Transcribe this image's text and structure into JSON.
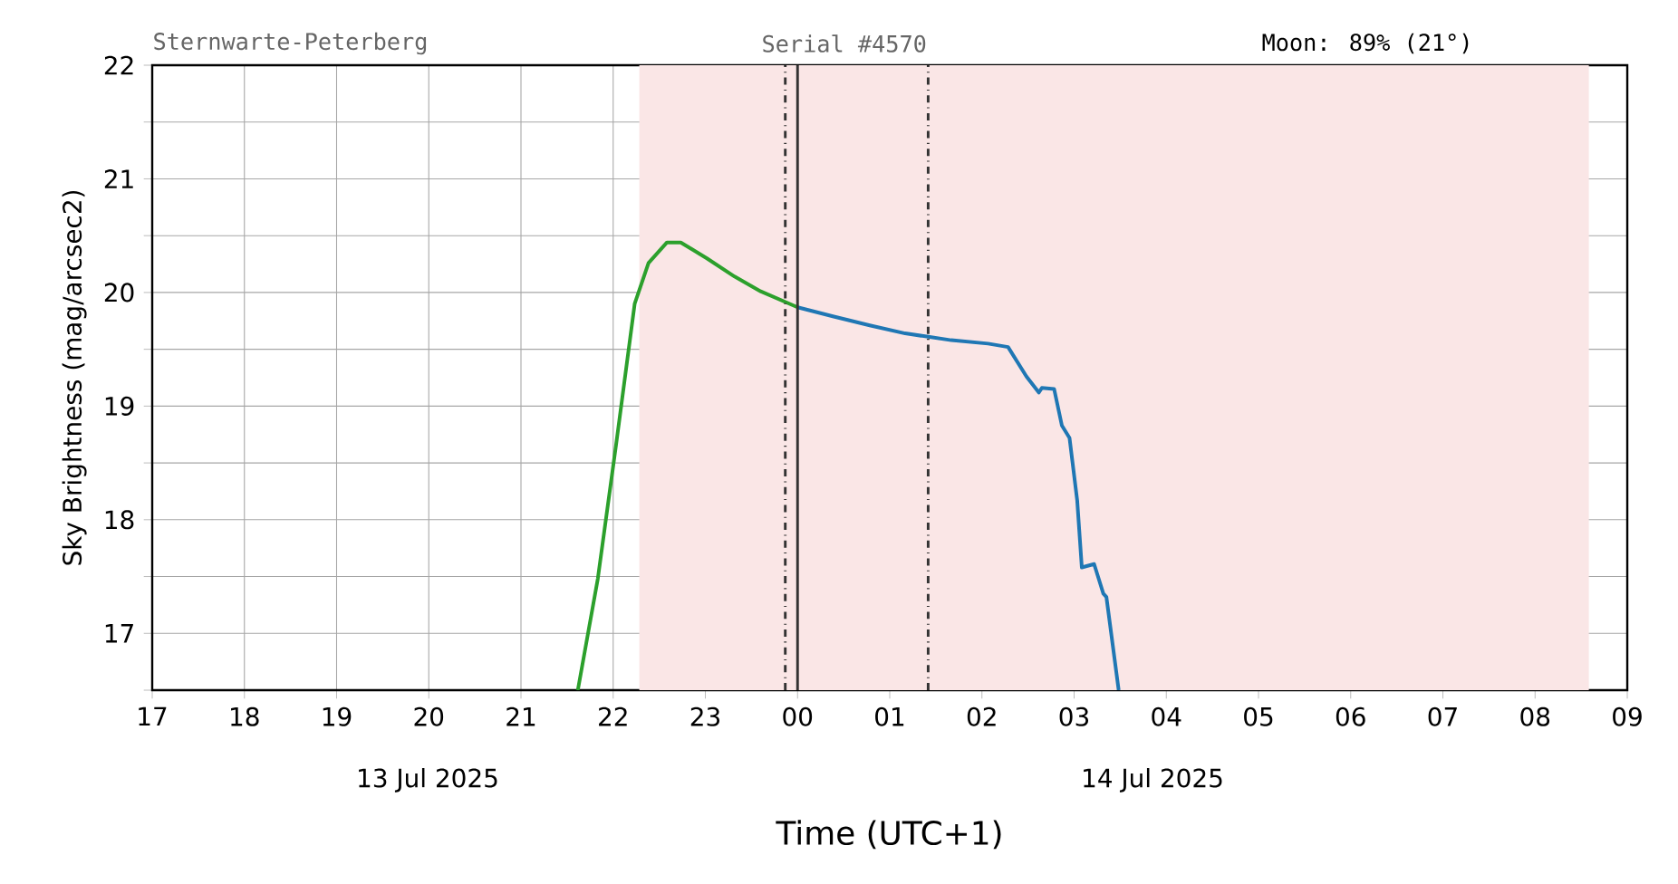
{
  "chart_data": {
    "type": "line",
    "xlabel": "Time (UTC+1)",
    "ylabel": "Sky Brightness (mag/arcsec2)",
    "annotations": [
      "Sternwarte-Peterberg",
      "Serial #4570",
      "Moon: 89% (21°)",
      "13 Jul 2025",
      "14 Jul 2025"
    ],
    "xlim": [
      "2025-07-13T17:00",
      "2025-07-14T09:00"
    ],
    "ylim": [
      16.5,
      22
    ],
    "xticks": [
      {
        "value": "2025-07-13T17:00",
        "label": "17"
      },
      {
        "value": "2025-07-13T18:00",
        "label": "18"
      },
      {
        "value": "2025-07-13T19:00",
        "label": "19"
      },
      {
        "value": "2025-07-13T20:00",
        "label": "20"
      },
      {
        "value": "2025-07-13T21:00",
        "label": "21"
      },
      {
        "value": "2025-07-13T22:00",
        "label": "22"
      },
      {
        "value": "2025-07-13T23:00",
        "label": "23"
      },
      {
        "value": "2025-07-14T00:00",
        "label": "00"
      },
      {
        "value": "2025-07-14T01:00",
        "label": "01"
      },
      {
        "value": "2025-07-14T02:00",
        "label": "02"
      },
      {
        "value": "2025-07-14T03:00",
        "label": "03"
      },
      {
        "value": "2025-07-14T04:00",
        "label": "04"
      },
      {
        "value": "2025-07-14T05:00",
        "label": "05"
      },
      {
        "value": "2025-07-14T06:00",
        "label": "06"
      },
      {
        "value": "2025-07-14T07:00",
        "label": "07"
      },
      {
        "value": "2025-07-14T08:00",
        "label": "08"
      },
      {
        "value": "2025-07-14T09:00",
        "label": "09"
      }
    ],
    "yticks": [
      {
        "value": 16.5,
        "label": null
      },
      17,
      {
        "value": 17.5,
        "label": null
      },
      18,
      {
        "value": 18.5,
        "label": null
      },
      19,
      {
        "value": 19.5,
        "label": null
      },
      20,
      {
        "value": 20.5,
        "label": null
      },
      21,
      {
        "value": 21.5,
        "label": null
      },
      22
    ],
    "grid": true,
    "marker": "none",
    "line_style": "solid",
    "bands": [
      {
        "axis": "x",
        "from": "2025-07-13T22:17",
        "to": "2025-07-14T08:35",
        "color": "#fae6e6"
      }
    ],
    "ref_lines": [
      {
        "axis": "x",
        "value": "2025-07-13T23:52",
        "color": "#333333",
        "line_style": "dashdot"
      },
      {
        "axis": "x",
        "value": "2025-07-14T00:00",
        "color": "#333333",
        "line_style": "solid"
      },
      {
        "axis": "x",
        "value": "2025-07-14T01:25",
        "color": "#333333",
        "line_style": "dashdot"
      }
    ],
    "series": [
      {
        "color": "#2ca02c",
        "x": [
          "2025-07-13T21:37",
          "2025-07-13T21:50",
          "2025-07-13T22:02",
          "2025-07-13T22:14",
          "2025-07-13T22:23",
          "2025-07-13T22:35",
          "2025-07-13T22:44",
          "2025-07-13T23:01",
          "2025-07-13T23:19",
          "2025-07-13T23:36",
          "2025-07-14T00:00"
        ],
        "values": [
          16.5,
          17.48,
          18.67,
          19.9,
          20.26,
          20.44,
          20.44,
          20.3,
          20.14,
          20.01,
          19.87
        ]
      },
      {
        "color": "#1f77b4",
        "x": [
          "2025-07-14T00:00",
          "2025-07-14T00:23",
          "2025-07-14T00:47",
          "2025-07-14T01:10",
          "2025-07-14T01:25",
          "2025-07-14T01:40",
          "2025-07-14T02:04",
          "2025-07-14T02:17",
          "2025-07-14T02:29",
          "2025-07-14T02:37",
          "2025-07-14T02:39",
          "2025-07-14T02:47",
          "2025-07-14T02:52",
          "2025-07-14T02:57",
          "2025-07-14T03:02",
          "2025-07-14T03:05",
          "2025-07-14T03:13",
          "2025-07-14T03:19",
          "2025-07-14T03:21",
          "2025-07-14T03:29"
        ],
        "values": [
          19.87,
          19.79,
          19.71,
          19.64,
          19.61,
          19.58,
          19.55,
          19.52,
          19.26,
          19.12,
          19.16,
          19.15,
          18.83,
          18.72,
          18.17,
          17.58,
          17.61,
          17.35,
          17.32,
          16.5
        ]
      }
    ]
  }
}
